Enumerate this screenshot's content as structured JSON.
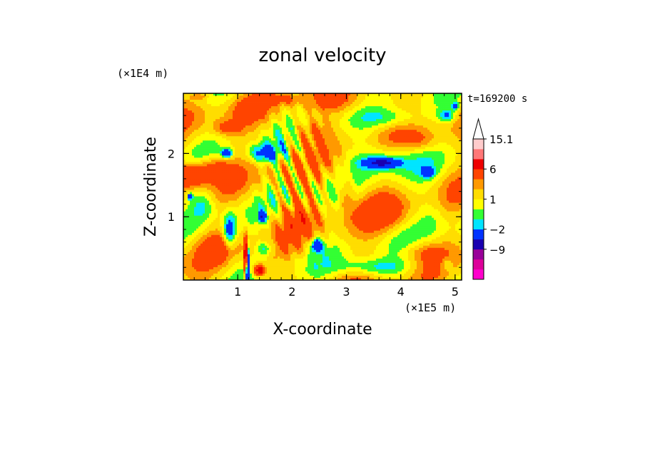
{
  "chart_data": {
    "type": "heatmap",
    "title": "zonal velocity",
    "xlabel": "X-coordinate",
    "ylabel": "Z-coordinate",
    "x_scale_label": "(×1E5 m)",
    "y_scale_label": "(×1E4 m)",
    "time_label": "t=169200 s",
    "xlim": [
      0,
      5.12
    ],
    "ylim": [
      0,
      2.95
    ],
    "x_ticks": [
      1,
      2,
      3,
      4,
      5
    ],
    "x_tick_labels": [
      "1",
      "2",
      "3",
      "4",
      "5"
    ],
    "y_ticks": [
      1,
      2
    ],
    "y_tick_labels": [
      "1",
      "2"
    ],
    "colorbar": {
      "levels": [
        -15,
        -12,
        -9,
        -6,
        -2,
        -1,
        0,
        1,
        2,
        3,
        6,
        9,
        12,
        15.1
      ],
      "labels": [
        "15.1",
        "6",
        "1",
        "−2",
        "−9"
      ],
      "label_values": [
        15.1,
        6,
        1,
        -2,
        -9
      ],
      "colors": [
        "#ff00cc",
        "#dd0099",
        "#990099",
        "#1a00b0",
        "#0033ff",
        "#00e5ff",
        "#33ff33",
        "#ffff00",
        "#ffdd00",
        "#ff9900",
        "#ff4400",
        "#ee0000",
        "#ff7777",
        "#ffcccc"
      ],
      "extend_max": true
    },
    "features": [
      {
        "x": 0.15,
        "z": 2.65,
        "u": 0.5,
        "sx": 0.35,
        "sz": 0.18
      },
      {
        "x": 0.12,
        "z": 1.65,
        "u": 5.0,
        "sx": 0.35,
        "sz": 0.18
      },
      {
        "x": 0.55,
        "z": 1.8,
        "u": 2.5,
        "sx": 0.3,
        "sz": 0.15
      },
      {
        "x": 0.8,
        "z": 2.0,
        "u": -6.0,
        "sx": 0.1,
        "sz": 0.07
      },
      {
        "x": 0.8,
        "z": 2.4,
        "u": 2.5,
        "sx": 0.25,
        "sz": 0.12
      },
      {
        "x": 0.35,
        "z": 1.2,
        "u": -2.5,
        "sx": 0.25,
        "sz": 0.25
      },
      {
        "x": 0.12,
        "z": 1.32,
        "u": -5.0,
        "sx": 0.05,
        "sz": 0.05
      },
      {
        "x": 0.85,
        "z": 0.75,
        "u": -5.0,
        "sx": 0.12,
        "sz": 0.3
      },
      {
        "x": 0.65,
        "z": 0.5,
        "u": 2.5,
        "sx": 0.3,
        "sz": 0.2
      },
      {
        "x": 1.15,
        "z": 0.35,
        "u": 12.0,
        "sx": 0.03,
        "sz": 0.3
      },
      {
        "x": 1.18,
        "z": 0.2,
        "u": -13.0,
        "sx": 0.025,
        "sz": 0.3
      },
      {
        "x": 1.4,
        "z": 0.15,
        "u": 8.0,
        "sx": 0.1,
        "sz": 0.08
      },
      {
        "x": 1.45,
        "z": 1.0,
        "u": -6.0,
        "sx": 0.06,
        "sz": 0.08
      },
      {
        "x": 1.5,
        "z": 2.0,
        "u": -4.0,
        "sx": 0.3,
        "sz": 0.15
      },
      {
        "x": 1.5,
        "z": 0.5,
        "u": -3.0,
        "sx": 0.15,
        "sz": 0.12
      },
      {
        "x": 2.45,
        "z": 0.55,
        "u": -6.0,
        "sx": 0.1,
        "sz": 0.1
      },
      {
        "x": 2.3,
        "z": 2.35,
        "u": 2.0,
        "sx": 0.35,
        "sz": 0.2
      },
      {
        "x": 2.1,
        "z": 1.0,
        "u": 2.0,
        "sx": 0.35,
        "sz": 0.3
      },
      {
        "x": 3.5,
        "z": 0.2,
        "u": -3.0,
        "sx": 0.7,
        "sz": 0.14
      },
      {
        "x": 3.7,
        "z": 1.9,
        "u": -3.0,
        "sx": 0.6,
        "sz": 0.25
      },
      {
        "x": 3.65,
        "z": 1.85,
        "u": -7.0,
        "sx": 0.3,
        "sz": 0.07
      },
      {
        "x": 4.5,
        "z": 1.7,
        "u": -4.0,
        "sx": 0.12,
        "sz": 0.08
      },
      {
        "x": 3.7,
        "z": 1.05,
        "u": 2.2,
        "sx": 0.45,
        "sz": 0.28
      },
      {
        "x": 4.6,
        "z": 1.0,
        "u": -1.5,
        "sx": 0.3,
        "sz": 0.4
      },
      {
        "x": 4.4,
        "z": 0.45,
        "u": 1.5,
        "sx": 0.35,
        "sz": 0.15
      },
      {
        "x": 3.9,
        "z": 2.55,
        "u": -2.0,
        "sx": 0.5,
        "sz": 0.15
      },
      {
        "x": 4.85,
        "z": 2.6,
        "u": -3.5,
        "sx": 0.15,
        "sz": 0.1
      },
      {
        "x": 5.0,
        "z": 2.75,
        "u": -5.0,
        "sx": 0.06,
        "sz": 0.05
      },
      {
        "x": 4.85,
        "z": 0.25,
        "u": -2.0,
        "sx": 0.1,
        "sz": 0.1
      },
      {
        "x": 3.0,
        "z": 2.8,
        "u": 1.2,
        "sx": 0.8,
        "sz": 0.15
      },
      {
        "x": 3.0,
        "z": 1.4,
        "u": 2.5,
        "sx": 0.15,
        "sz": 0.3
      },
      {
        "x": 4.4,
        "z": 2.2,
        "u": 1.5,
        "sx": 0.3,
        "sz": 0.15
      },
      {
        "x": 0.3,
        "z": 2.9,
        "u": 2.0,
        "sx": 0.15,
        "sz": 0.05
      },
      {
        "x": 1.2,
        "z": 2.7,
        "u": 1.8,
        "sx": 0.25,
        "sz": 0.15
      },
      {
        "x": 1.9,
        "z": 2.85,
        "u": 1.6,
        "sx": 0.3,
        "sz": 0.08
      }
    ],
    "wave_packet": {
      "x": 2.1,
      "z": 1.6,
      "amplitude": 2.8,
      "sx": 0.55,
      "sz": 0.9,
      "wavenumber": 22,
      "x_weight": 1.0,
      "z_weight": 0.45
    },
    "background_u": 1.5,
    "background_ripple": {
      "amplitude": 2.3,
      "kx": 1.6,
      "kz": 2.1,
      "kx2": 2.9,
      "kz2": 3.7
    }
  }
}
